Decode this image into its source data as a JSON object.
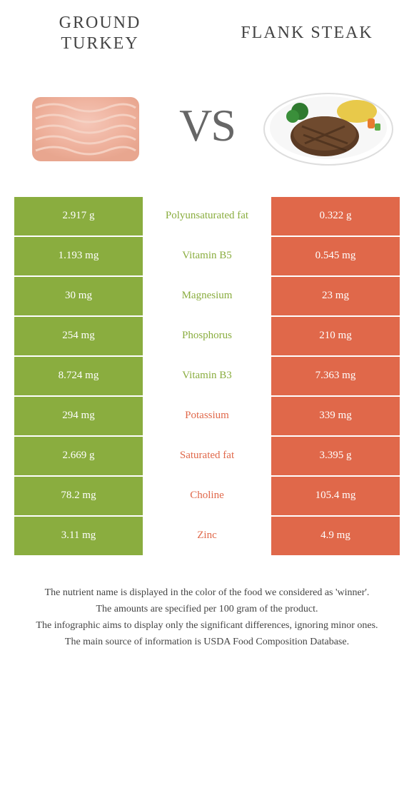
{
  "colors": {
    "left": "#8aad3f",
    "right": "#e0684a",
    "mid_bg": "#ffffff",
    "text_dark": "#444444"
  },
  "titles": {
    "left_line1": "GROUND",
    "left_line2": "TURKEY",
    "right": "FLANK STEAK",
    "vs": "VS"
  },
  "rows": [
    {
      "left": "2.917 g",
      "label": "Polyunsaturated fat",
      "right": "0.322 g",
      "winner": "left"
    },
    {
      "left": "1.193 mg",
      "label": "Vitamin B5",
      "right": "0.545 mg",
      "winner": "left"
    },
    {
      "left": "30 mg",
      "label": "Magnesium",
      "right": "23 mg",
      "winner": "left"
    },
    {
      "left": "254 mg",
      "label": "Phosphorus",
      "right": "210 mg",
      "winner": "left"
    },
    {
      "left": "8.724 mg",
      "label": "Vitamin B3",
      "right": "7.363 mg",
      "winner": "left"
    },
    {
      "left": "294 mg",
      "label": "Potassium",
      "right": "339 mg",
      "winner": "right"
    },
    {
      "left": "2.669 g",
      "label": "Saturated fat",
      "right": "3.395 g",
      "winner": "right"
    },
    {
      "left": "78.2 mg",
      "label": "Choline",
      "right": "105.4 mg",
      "winner": "right"
    },
    {
      "left": "3.11 mg",
      "label": "Zinc",
      "right": "4.9 mg",
      "winner": "right"
    }
  ],
  "footer": [
    "The nutrient name is displayed in the color of the food we considered as 'winner'.",
    "The amounts are specified per 100 gram of the product.",
    "The infographic aims to display only the significant differences, ignoring minor ones.",
    "The main source of information is USDA Food Composition Database."
  ]
}
